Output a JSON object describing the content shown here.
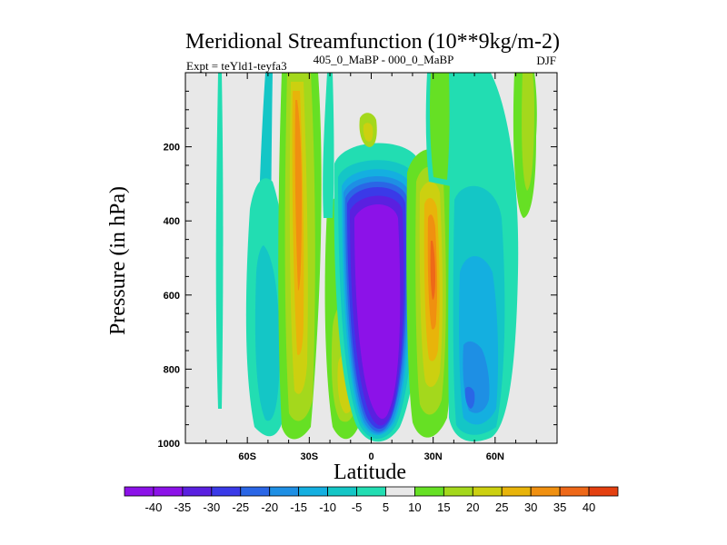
{
  "chart_data": {
    "type": "heatmap",
    "title": "Meridional Streamfunction (10**9kg/m-2)",
    "left_label": "Expt = teYld1-teyfa3",
    "center_label": "405_0_MaBP - 000_0_MaBP",
    "right_label": "DJF",
    "xlabel": "Latitude",
    "ylabel": "Pressure (in hPa)",
    "xlim": [
      -90,
      90
    ],
    "ylim": [
      1000,
      0
    ],
    "x_ticks": [
      -60,
      -30,
      0,
      30,
      60
    ],
    "x_tick_labels": [
      "60S",
      "30S",
      "0",
      "30N",
      "60N"
    ],
    "y_ticks": [
      200,
      400,
      600,
      800,
      1000
    ],
    "y_tick_labels": [
      "200",
      "400",
      "600",
      "800",
      "1000"
    ],
    "colorbar": {
      "levels": [
        "-40",
        "-35",
        "-30",
        "-25",
        "-20",
        "-15",
        "-10",
        "-5",
        "5",
        "10",
        "15",
        "20",
        "25",
        "30",
        "35",
        "40"
      ],
      "colors": [
        "#8c12e8",
        "#5a20e0",
        "#3a3ae8",
        "#2a66e6",
        "#1e8fe4",
        "#14afe0",
        "#14c6c6",
        "#22ddb2",
        "#e8e8e8",
        "#66e024",
        "#a4d81c",
        "#ccd010",
        "#e8b40a",
        "#f09010",
        "#ee6818",
        "#e44010"
      ]
    },
    "field_regions": [
      {
        "label": "tropical-cell-negative",
        "lat_range": [
          -10,
          18
        ],
        "p_range": [
          210,
          985
        ],
        "core_value": -40
      },
      {
        "label": "sh-subtropical-positive",
        "lat_range": [
          -42,
          -28
        ],
        "p_range": [
          20,
          940
        ],
        "core_value": 30
      },
      {
        "label": "nh-subtropical-positive",
        "lat_range": [
          22,
          38
        ],
        "p_range": [
          200,
          960
        ],
        "core_value": 35
      },
      {
        "label": "sh-midlat-negative",
        "lat_range": [
          -65,
          -45
        ],
        "p_range": [
          230,
          970
        ],
        "core_value": -10
      },
      {
        "label": "nh-midlat-negative",
        "lat_range": [
          38,
          62
        ],
        "p_range": [
          240,
          975
        ],
        "core_value": -20
      },
      {
        "label": "nh-upper-positive",
        "lat_range": [
          28,
          42
        ],
        "p_range": [
          0,
          200
        ],
        "core_value": 10
      },
      {
        "label": "high-lat-positive",
        "lat_range": [
          68,
          80
        ],
        "p_range": [
          0,
          350
        ],
        "core_value": 10
      }
    ]
  }
}
